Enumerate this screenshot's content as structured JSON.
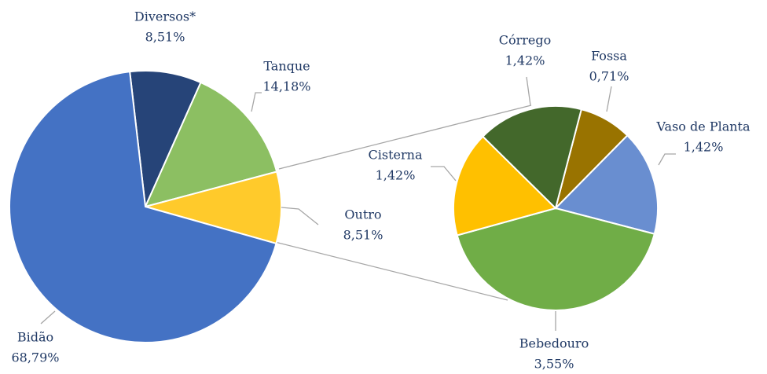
{
  "chart_data": [
    {
      "type": "pie",
      "categories": [
        "Diversos*",
        "Tanque",
        "Outro",
        "Bidão"
      ],
      "values": [
        8.51,
        14.18,
        8.51,
        68.79
      ],
      "value_labels": [
        "8,51%",
        "14,18%",
        "8,51%",
        "68,79%"
      ],
      "colors": [
        "#264478",
        "#8cbf62",
        "#ffca2b",
        "#4472c4"
      ]
    },
    {
      "type": "pie",
      "categories": [
        "Fossa",
        "Vaso de Planta",
        "Bebedouro",
        "Cisterna",
        "Córrego"
      ],
      "values": [
        0.71,
        1.42,
        3.55,
        1.42,
        1.42
      ],
      "value_labels": [
        "0,71%",
        "1,42%",
        "3,55%",
        "1,42%",
        "1,42%"
      ],
      "colors": [
        "#997300",
        "#698ed0",
        "#70ad47",
        "#ffc000",
        "#43682b"
      ]
    }
  ]
}
